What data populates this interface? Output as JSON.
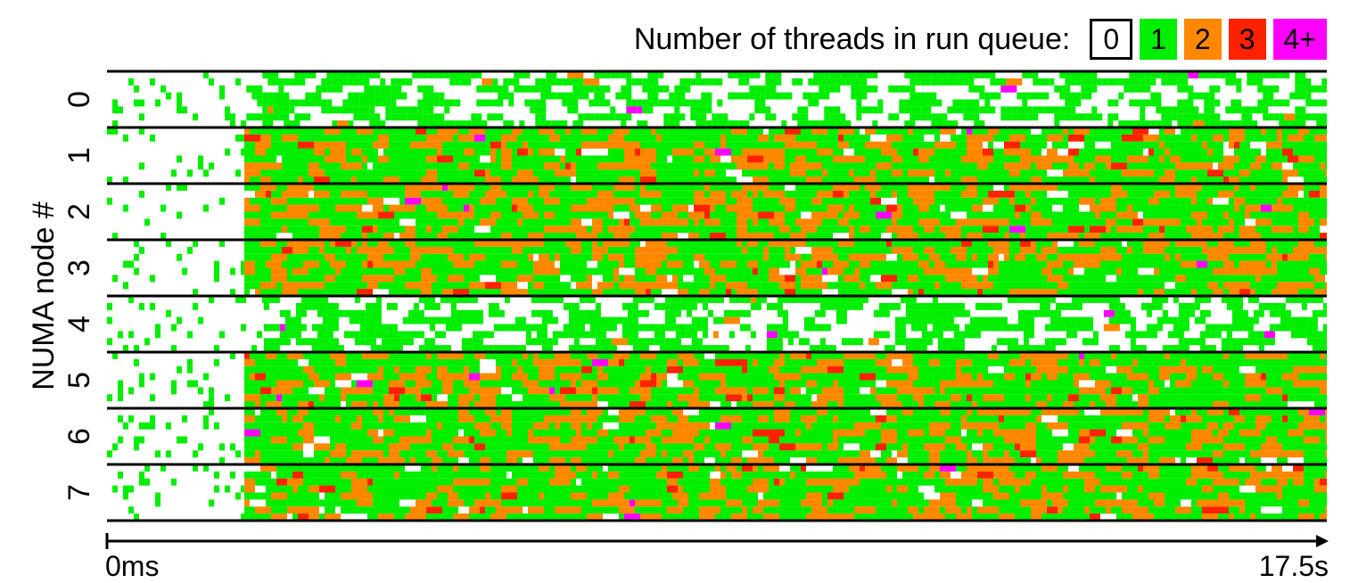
{
  "chart_data": {
    "type": "heatmap",
    "legend": {
      "title": "Number of threads in run queue:",
      "placement": "top-right",
      "entries": [
        {
          "label": "0",
          "color": "#ffffff"
        },
        {
          "label": "1",
          "color": "#00ee00"
        },
        {
          "label": "2",
          "color": "#ff8800"
        },
        {
          "label": "3",
          "color": "#ff2200"
        },
        {
          "label": "4+",
          "color": "#ff00ff"
        }
      ]
    },
    "ylabel": "NUMA node #",
    "nodes": [
      "0",
      "1",
      "2",
      "3",
      "4",
      "5",
      "6",
      "7"
    ],
    "xaxis": {
      "start_label": "0ms",
      "end_label": "17.5s",
      "start_s": 0,
      "end_s": 17.5
    },
    "node_profile": [
      {
        "node": "0",
        "busy_from_s": 2.0,
        "load": "light"
      },
      {
        "node": "1",
        "busy_from_s": 1.97,
        "load": "heavy"
      },
      {
        "node": "2",
        "busy_from_s": 1.97,
        "load": "heavy"
      },
      {
        "node": "3",
        "busy_from_s": 1.97,
        "load": "heavy"
      },
      {
        "node": "4",
        "busy_from_s": 2.25,
        "load": "light"
      },
      {
        "node": "5",
        "busy_from_s": 1.97,
        "load": "heavy"
      },
      {
        "node": "6",
        "busy_from_s": 1.97,
        "load": "heavy"
      },
      {
        "node": "7",
        "busy_from_s": 1.97,
        "load": "heavy"
      }
    ]
  }
}
